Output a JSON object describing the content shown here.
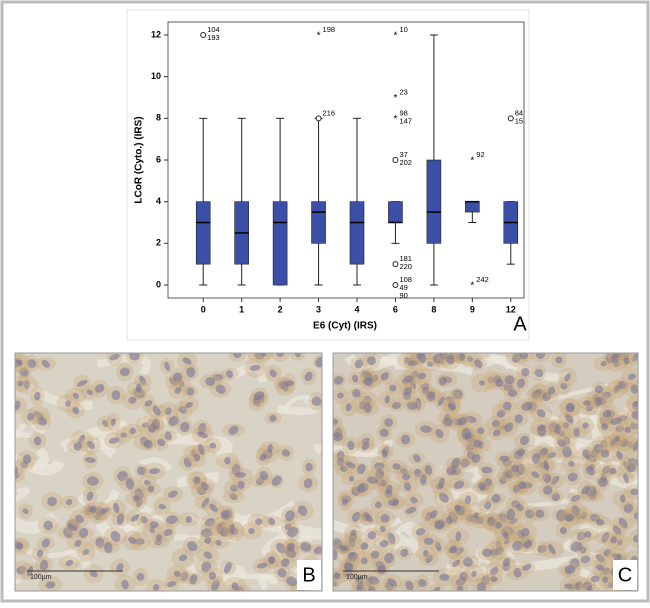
{
  "chart_data": {
    "type": "boxplot",
    "x_label": "E6 (Cyt) (IRS)",
    "y_label": "LCoR (Cyto.) (IRS)",
    "categories": [
      "0",
      "1",
      "2",
      "3",
      "4",
      "6",
      "8",
      "9",
      "12"
    ],
    "color": "#3b4fa6",
    "ylim": [
      0,
      12
    ],
    "yticks": [
      0,
      2,
      4,
      6,
      8,
      10,
      12
    ],
    "boxes": [
      {
        "min": 0,
        "q1": 1,
        "median": 3,
        "q3": 4,
        "max": 8,
        "outliers": [
          {
            "value": 12,
            "marker": "circle",
            "labels": [
              "104",
              "193"
            ]
          }
        ]
      },
      {
        "min": 0,
        "q1": 1,
        "median": 2.5,
        "q3": 4,
        "max": 8,
        "outliers": []
      },
      {
        "min": 0,
        "q1": 0,
        "median": 3,
        "q3": 4,
        "max": 8,
        "outliers": []
      },
      {
        "min": 0,
        "q1": 2,
        "median": 3.5,
        "q3": 4,
        "max": 8,
        "outliers": [
          {
            "value": 8,
            "marker": "circle",
            "labels": [
              "216"
            ]
          },
          {
            "value": 12,
            "marker": "star",
            "labels": [
              "198"
            ]
          }
        ]
      },
      {
        "min": 0,
        "q1": 1,
        "median": 3,
        "q3": 4,
        "max": 8,
        "outliers": []
      },
      {
        "min": 2,
        "q1": 3,
        "median": 3,
        "q3": 4,
        "max": 4,
        "outliers": [
          {
            "value": 12,
            "marker": "star",
            "labels": [
              "10"
            ]
          },
          {
            "value": 9,
            "marker": "star",
            "labels": [
              "23"
            ]
          },
          {
            "value": 8,
            "marker": "star",
            "labels": [
              "98",
              "147"
            ]
          },
          {
            "value": 6,
            "marker": "circle",
            "labels": [
              "37",
              "202"
            ]
          },
          {
            "value": 1,
            "marker": "circle",
            "labels": [
              "181",
              "220"
            ]
          },
          {
            "value": 0,
            "marker": "circle",
            "labels": [
              "108",
              "49",
              "90"
            ]
          }
        ]
      },
      {
        "min": 0,
        "q1": 2,
        "median": 3.5,
        "q3": 6,
        "max": 12,
        "outliers": []
      },
      {
        "min": 3,
        "q1": 3.5,
        "median": 4,
        "q3": 4,
        "max": 4,
        "outliers": [
          {
            "value": 6,
            "marker": "star",
            "labels": [
              "92"
            ]
          },
          {
            "value": 0,
            "marker": "star",
            "labels": [
              "242"
            ]
          }
        ]
      },
      {
        "min": 1,
        "q1": 2,
        "median": 3,
        "q3": 4,
        "max": 4,
        "outliers": [
          {
            "value": 8,
            "marker": "circle",
            "labels": [
              "84",
              "15"
            ]
          }
        ]
      }
    ]
  },
  "figure": {
    "panel_labels": [
      "A",
      "B",
      "C"
    ],
    "scale_bars": [
      "100μm",
      "100μm"
    ]
  }
}
